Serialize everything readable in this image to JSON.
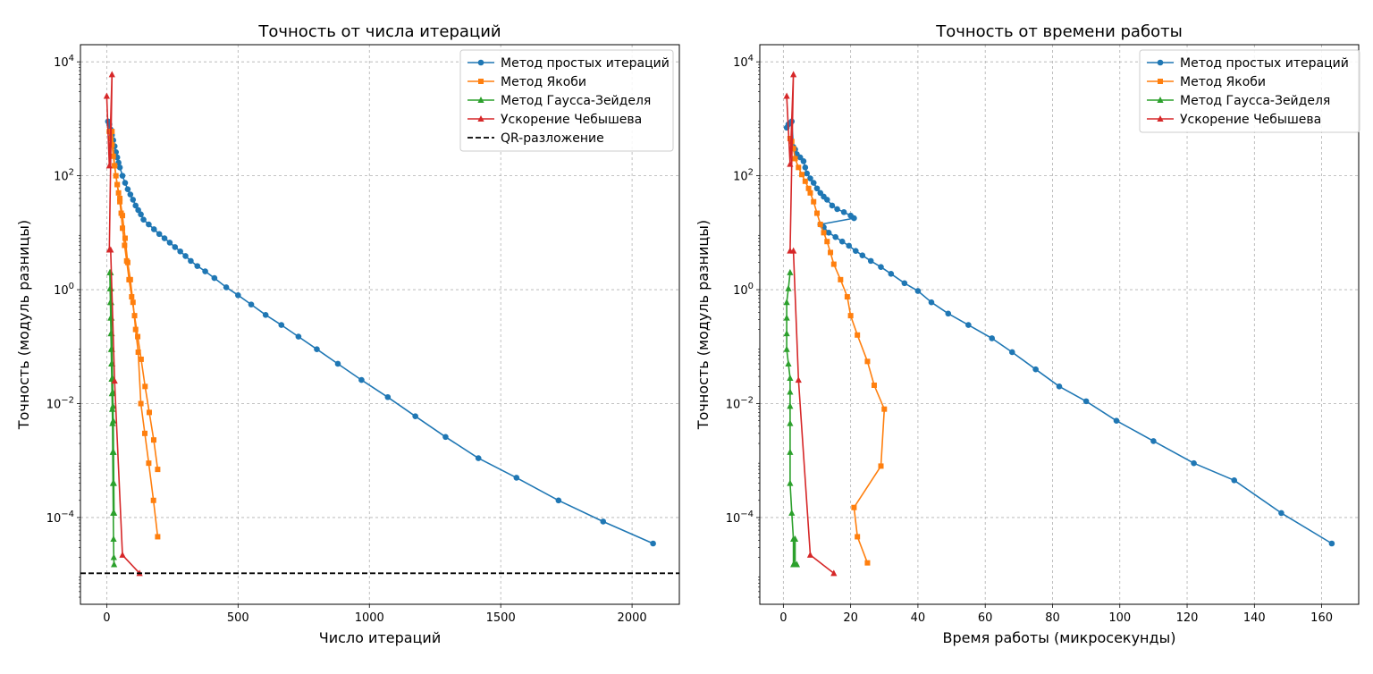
{
  "chart_data": [
    {
      "type": "line",
      "title": "Точность от числа итераций",
      "xlabel": "Число итераций",
      "ylabel": "Точность (модуль разницы)",
      "yscale": "log",
      "xlim": [
        -100,
        2180
      ],
      "ylim": [
        3e-06,
        20000
      ],
      "xticks": [
        0,
        500,
        1000,
        1500,
        2000
      ],
      "yticks": [
        {
          "v": 0.0001,
          "b": "10",
          "e": "−4"
        },
        {
          "v": 0.01,
          "b": "10",
          "e": "−2"
        },
        {
          "v": 1,
          "b": "10",
          "e": "0"
        },
        {
          "v": 100,
          "b": "10",
          "e": "2"
        },
        {
          "v": 10000,
          "b": "10",
          "e": "4"
        }
      ],
      "grid": true,
      "legend_position": "top-right",
      "series": [
        {
          "name": "Метод простых итераций",
          "color": "#1f77b4",
          "marker": "circle",
          "x": [
            5,
            10,
            15,
            20,
            25,
            30,
            35,
            40,
            45,
            50,
            60,
            70,
            80,
            90,
            100,
            110,
            120,
            130,
            140,
            160,
            180,
            200,
            220,
            240,
            260,
            280,
            300,
            320,
            345,
            375,
            410,
            455,
            500,
            550,
            605,
            665,
            730,
            800,
            880,
            970,
            1070,
            1175,
            1290,
            1415,
            1560,
            1720,
            1890,
            2080
          ],
          "y": [
            900,
            800,
            650,
            520,
            420,
            330,
            260,
            210,
            170,
            140,
            100,
            75,
            58,
            47,
            38,
            30,
            25,
            21,
            17,
            14,
            11.5,
            9.5,
            8,
            6.7,
            5.6,
            4.7,
            3.9,
            3.2,
            2.6,
            2.1,
            1.6,
            1.1,
            0.8,
            0.55,
            0.36,
            0.24,
            0.15,
            0.09,
            0.05,
            0.026,
            0.013,
            0.006,
            0.0026,
            0.0011,
            0.0005,
            0.0002,
            8.5e-05,
            3.5e-05
          ]
        },
        {
          "name": "Метод Якоби",
          "color": "#ff7f0e",
          "marker": "square",
          "x": [
            10,
            15,
            20,
            25,
            30,
            35,
            40,
            45,
            50,
            55,
            60,
            68,
            76,
            85,
            95,
            106,
            118,
            131,
            146,
            162,
            179,
            194
          ],
          "y": [
            600,
            450,
            350,
            220,
            150,
            100,
            70,
            50,
            35,
            22,
            12,
            6,
            3.2,
            1.5,
            0.75,
            0.35,
            0.15,
            0.06,
            0.02,
            0.007,
            0.0023,
            0.0007
          ],
          "x2": [
            20,
            30,
            40,
            50,
            60,
            70,
            80,
            90,
            100,
            110,
            120,
            130,
            145,
            160,
            178,
            194
          ],
          "y2": [
            600,
            150,
            70,
            40,
            20,
            8,
            3,
            1.5,
            0.6,
            0.2,
            0.08,
            0.01,
            0.003,
            0.0009,
            0.0002,
            4.6e-05
          ]
        },
        {
          "name": "Метод Гаусса-Зейделя",
          "color": "#2ca02c",
          "marker": "triangle",
          "x": [
            12,
            13,
            14,
            15,
            16,
            17,
            18,
            19,
            20,
            21,
            22,
            23,
            24,
            25,
            26,
            27,
            28
          ],
          "y": [
            2.0,
            1.05,
            0.6,
            0.32,
            0.17,
            0.09,
            0.05,
            0.027,
            0.015,
            0.008,
            0.0045,
            0.0014,
            0.0004,
            0.00012,
            4.2e-05,
            2e-05,
            1.5e-05
          ],
          "x2": [
            15,
            16,
            17,
            18,
            19,
            20,
            21,
            22,
            23,
            24,
            25,
            26,
            27,
            28
          ],
          "y2": [
            2.0,
            1.05,
            0.6,
            0.32,
            0.17,
            0.09,
            0.05,
            0.028,
            0.016,
            0.009,
            0.005,
            0.0014,
            0.0004,
            0.00012
          ]
        },
        {
          "name": "Ускорение Чебышева",
          "color": "#d62728",
          "marker": "triangle",
          "x": [
            0,
            10,
            20,
            10,
            15,
            30,
            60,
            125
          ],
          "y": [
            2500,
            150,
            6000,
            5,
            5,
            0.025,
            2.2e-05,
            1.05e-05
          ]
        },
        {
          "name": "QR-разложение",
          "color": "#000000",
          "dashed": true,
          "y_constant": 1.05e-05
        }
      ]
    },
    {
      "type": "line",
      "title": "Точность от времени работы",
      "xlabel": "Время работы (микросекунды)",
      "ylabel": "Точность (модуль разницы)",
      "yscale": "log",
      "xlim": [
        -7,
        171
      ],
      "ylim": [
        3e-06,
        20000
      ],
      "xticks": [
        0,
        20,
        40,
        60,
        80,
        100,
        120,
        140,
        160
      ],
      "yticks": [
        {
          "v": 0.0001,
          "b": "10",
          "e": "−4"
        },
        {
          "v": 0.01,
          "b": "10",
          "e": "−2"
        },
        {
          "v": 1,
          "b": "10",
          "e": "0"
        },
        {
          "v": 100,
          "b": "10",
          "e": "2"
        },
        {
          "v": 10000,
          "b": "10",
          "e": "4"
        }
      ],
      "grid": true,
      "legend_position": "top-right",
      "series": [
        {
          "name": "Метод простых итераций",
          "color": "#1f77b4",
          "marker": "circle",
          "x": [
            1,
            1.5,
            2,
            2.5,
            3,
            3.5,
            4,
            5,
            6,
            6.5,
            7,
            8,
            9,
            10,
            11,
            12,
            13,
            14.5,
            16,
            18,
            20,
            21,
            11,
            12,
            13.5,
            15.5,
            17.5,
            19.5,
            21.5,
            23.5,
            26,
            29,
            32,
            36,
            40,
            44,
            49,
            55,
            62,
            68,
            75,
            82,
            90,
            99,
            110,
            122,
            134,
            148,
            163
          ],
          "y": [
            700,
            800,
            850,
            900,
            320,
            290,
            240,
            210,
            180,
            140,
            110,
            90,
            75,
            60,
            50,
            43,
            38,
            30,
            26,
            23,
            20,
            18,
            14,
            12.5,
            10,
            8.4,
            7,
            5.9,
            4.8,
            4,
            3.2,
            2.5,
            1.9,
            1.3,
            0.95,
            0.6,
            0.38,
            0.24,
            0.14,
            0.08,
            0.04,
            0.02,
            0.011,
            0.005,
            0.0022,
            0.0009,
            0.00045,
            0.00012,
            3.5e-05
          ]
        },
        {
          "name": "Метод Якоби",
          "color": "#ff7f0e",
          "marker": "square",
          "x": [
            2,
            2.5,
            3,
            3.5,
            4.5,
            5.5,
            6.5,
            7.5,
            8,
            9,
            10,
            11,
            12,
            13,
            14,
            15,
            17,
            19,
            20,
            22,
            25,
            27,
            30,
            29,
            21,
            22,
            25
          ],
          "y": [
            450,
            400,
            300,
            200,
            140,
            105,
            80,
            60,
            50,
            35,
            22,
            14,
            10,
            7,
            4.5,
            2.8,
            1.5,
            0.75,
            0.35,
            0.16,
            0.055,
            0.021,
            0.008,
            0.0008,
            0.00015,
            4.6e-05,
            1.6e-05
          ]
        },
        {
          "name": "Метод Гаусса-Зейделя",
          "color": "#2ca02c",
          "marker": "triangle",
          "x": [
            2,
            1.5,
            1,
            1,
            1,
            1,
            1.5,
            2,
            2,
            2,
            2,
            2,
            2,
            2.5,
            3,
            3,
            3.5,
            3.5,
            4
          ],
          "y": [
            2.0,
            1.05,
            0.6,
            0.32,
            0.17,
            0.09,
            0.05,
            0.028,
            0.016,
            0.009,
            0.0045,
            0.0014,
            0.0004,
            0.00012,
            4.2e-05,
            1.5e-05,
            4.2e-05,
            1.5e-05,
            1.5e-05
          ]
        },
        {
          "name": "Ускорение Чебышева",
          "color": "#d62728",
          "marker": "triangle",
          "x": [
            1,
            2,
            3,
            2,
            3,
            4.5,
            8,
            15
          ],
          "y": [
            2500,
            160,
            6000,
            4.8,
            4.8,
            0.026,
            2.2e-05,
            1.05e-05
          ]
        }
      ]
    }
  ]
}
